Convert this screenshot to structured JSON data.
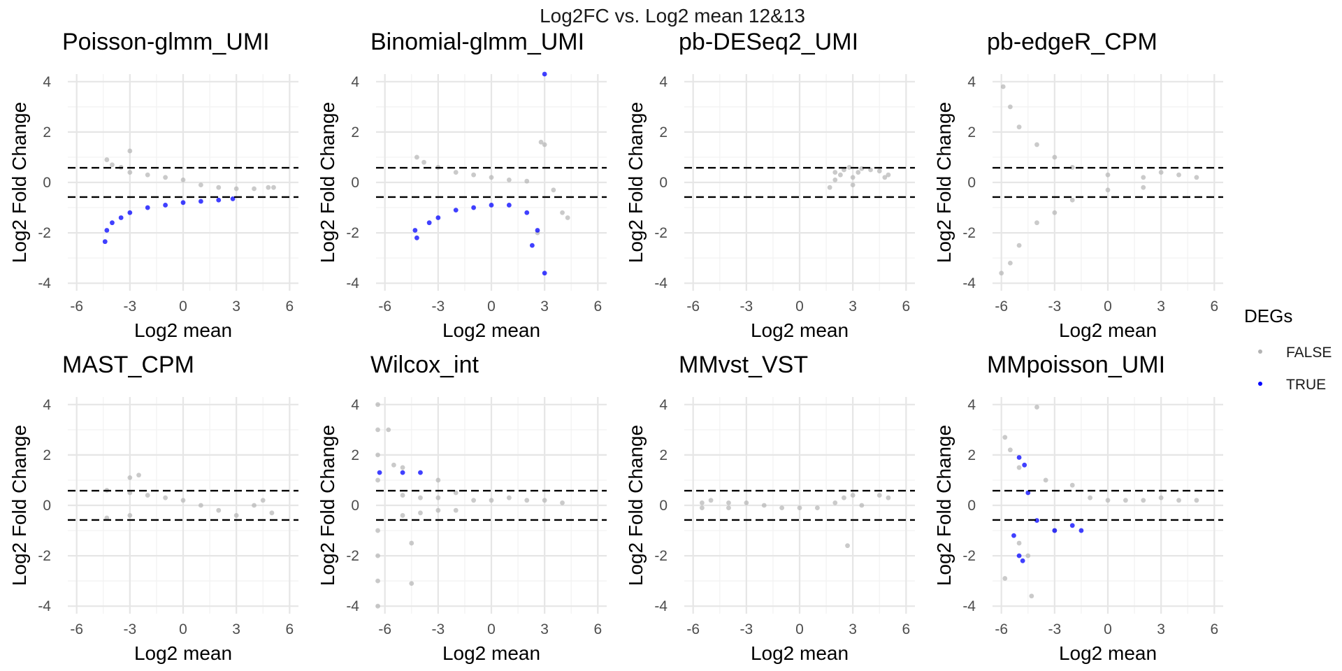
{
  "title": "Log2FC vs. Log2 mean  12&13",
  "legend": {
    "title": "DEGs",
    "items": [
      {
        "label": "FALSE",
        "color": "#b3b3b3"
      },
      {
        "label": "TRUE",
        "color": "#0000ff"
      }
    ]
  },
  "chart_data": [
    {
      "type": "scatter",
      "title": "Poisson-glmm_UMI",
      "xlabel": "Log2 mean",
      "ylabel": "Log2 Fold Change",
      "xlim": [
        -6.5,
        6.5
      ],
      "ylim": [
        -4.3,
        4.3
      ],
      "x_ticks": [
        -6,
        -3,
        0,
        3,
        6
      ],
      "y_ticks": [
        -4,
        -2,
        0,
        2,
        4
      ],
      "hlines": [
        0.58,
        -0.58
      ],
      "grid": true,
      "series": [
        {
          "name": "FALSE",
          "color": "#b3b3b3",
          "points": [
            [
              -4.3,
              0.9
            ],
            [
              -4.0,
              0.7
            ],
            [
              -3.5,
              0.6
            ],
            [
              -3.0,
              1.25
            ],
            [
              -3.0,
              0.4
            ],
            [
              -2.0,
              0.3
            ],
            [
              -1.0,
              0.2
            ],
            [
              0.0,
              0.1
            ],
            [
              1.0,
              -0.1
            ],
            [
              2.0,
              -0.2
            ],
            [
              3.0,
              -0.25
            ],
            [
              4.0,
              -0.25
            ],
            [
              4.8,
              -0.2
            ],
            [
              5.1,
              -0.2
            ]
          ]
        },
        {
          "name": "TRUE",
          "color": "#0000ff",
          "points": [
            [
              -4.3,
              -1.9
            ],
            [
              -4.4,
              -2.35
            ],
            [
              -4.0,
              -1.6
            ],
            [
              -3.5,
              -1.4
            ],
            [
              -3.0,
              -1.2
            ],
            [
              -2.0,
              -1.0
            ],
            [
              -1.0,
              -0.9
            ],
            [
              0.0,
              -0.8
            ],
            [
              1.0,
              -0.75
            ],
            [
              2.0,
              -0.7
            ],
            [
              2.8,
              -0.65
            ]
          ]
        }
      ]
    },
    {
      "type": "scatter",
      "title": "Binomial-glmm_UMI",
      "xlabel": "Log2 mean",
      "ylabel": "Log2 Fold Change",
      "xlim": [
        -6.5,
        6.5
      ],
      "ylim": [
        -4.3,
        4.3
      ],
      "x_ticks": [
        -6,
        -3,
        0,
        3,
        6
      ],
      "y_ticks": [
        -4,
        -2,
        0,
        2,
        4
      ],
      "hlines": [
        0.58,
        -0.58
      ],
      "grid": true,
      "series": [
        {
          "name": "FALSE",
          "color": "#b3b3b3",
          "points": [
            [
              -4.2,
              1.0
            ],
            [
              -3.8,
              0.8
            ],
            [
              -3.0,
              0.6
            ],
            [
              -2.0,
              0.4
            ],
            [
              -1.0,
              0.3
            ],
            [
              0.0,
              0.2
            ],
            [
              1.0,
              0.1
            ],
            [
              2.0,
              0.05
            ],
            [
              2.8,
              1.6
            ],
            [
              3.0,
              1.5
            ],
            [
              3.5,
              -0.3
            ],
            [
              4.0,
              -1.2
            ],
            [
              4.3,
              -1.4
            ],
            [
              2.6,
              -2.0
            ]
          ]
        },
        {
          "name": "TRUE",
          "color": "#0000ff",
          "points": [
            [
              -4.3,
              -1.9
            ],
            [
              -4.2,
              -2.2
            ],
            [
              -3.5,
              -1.6
            ],
            [
              -3.0,
              -1.4
            ],
            [
              -2.0,
              -1.1
            ],
            [
              -1.0,
              -1.0
            ],
            [
              0.0,
              -0.9
            ],
            [
              1.0,
              -0.9
            ],
            [
              2.0,
              -1.2
            ],
            [
              2.3,
              -2.5
            ],
            [
              2.6,
              -1.9
            ],
            [
              3.0,
              -3.6
            ],
            [
              3.0,
              4.3
            ]
          ]
        }
      ]
    },
    {
      "type": "scatter",
      "title": "pb-DESeq2_UMI",
      "xlabel": "Log2 mean",
      "ylabel": "Log2 Fold Change",
      "xlim": [
        -6.5,
        6.5
      ],
      "ylim": [
        -4.3,
        4.3
      ],
      "x_ticks": [
        -6,
        -3,
        0,
        3,
        6
      ],
      "y_ticks": [
        -4,
        -2,
        0,
        2,
        4
      ],
      "hlines": [
        0.58,
        -0.58
      ],
      "grid": true,
      "series": [
        {
          "name": "FALSE",
          "color": "#b3b3b3",
          "points": [
            [
              1.7,
              -0.2
            ],
            [
              2.0,
              0.1
            ],
            [
              2.0,
              0.4
            ],
            [
              2.3,
              0.3
            ],
            [
              2.5,
              0.5
            ],
            [
              2.8,
              0.6
            ],
            [
              3.0,
              0.2
            ],
            [
              3.0,
              -0.1
            ],
            [
              3.3,
              0.4
            ],
            [
              3.5,
              0.55
            ],
            [
              4.0,
              0.5
            ],
            [
              4.5,
              0.45
            ],
            [
              4.8,
              0.2
            ],
            [
              5.0,
              0.3
            ]
          ]
        }
      ]
    },
    {
      "type": "scatter",
      "title": "pb-edgeR_CPM",
      "xlabel": "Log2 mean",
      "ylabel": "Log2 Fold Change",
      "xlim": [
        -6.5,
        6.5
      ],
      "ylim": [
        -4.3,
        4.3
      ],
      "x_ticks": [
        -6,
        -3,
        0,
        3,
        6
      ],
      "y_ticks": [
        -4,
        -2,
        0,
        2,
        4
      ],
      "hlines": [
        0.58,
        -0.58
      ],
      "grid": true,
      "series": [
        {
          "name": "FALSE",
          "color": "#b3b3b3",
          "points": [
            [
              -5.9,
              3.8
            ],
            [
              -6.0,
              -3.6
            ],
            [
              -5.5,
              3.0
            ],
            [
              -5.5,
              -3.2
            ],
            [
              -5.0,
              2.2
            ],
            [
              -5.0,
              -2.5
            ],
            [
              -4.0,
              1.5
            ],
            [
              -4.0,
              -1.6
            ],
            [
              -3.0,
              1.0
            ],
            [
              -3.0,
              -1.2
            ],
            [
              -2.0,
              0.6
            ],
            [
              -2.0,
              -0.7
            ],
            [
              0.0,
              0.3
            ],
            [
              0.0,
              -0.3
            ],
            [
              2.0,
              0.2
            ],
            [
              2.0,
              -0.2
            ],
            [
              3.0,
              0.4
            ],
            [
              4.0,
              0.3
            ],
            [
              5.0,
              0.2
            ]
          ]
        }
      ]
    },
    {
      "type": "scatter",
      "title": "MAST_CPM",
      "xlabel": "Log2 mean",
      "ylabel": "Log2 Fold Change",
      "xlim": [
        -6.5,
        6.5
      ],
      "ylim": [
        -4.3,
        4.3
      ],
      "x_ticks": [
        -6,
        -3,
        0,
        3,
        6
      ],
      "y_ticks": [
        -4,
        -2,
        0,
        2,
        4
      ],
      "hlines": [
        0.58,
        -0.58
      ],
      "grid": true,
      "series": [
        {
          "name": "FALSE",
          "color": "#b3b3b3",
          "points": [
            [
              -4.3,
              0.6
            ],
            [
              -4.3,
              -0.5
            ],
            [
              -3.0,
              1.1
            ],
            [
              -2.5,
              1.2
            ],
            [
              -3.0,
              0.5
            ],
            [
              -3.0,
              -0.4
            ],
            [
              -2.0,
              0.4
            ],
            [
              -1.0,
              0.3
            ],
            [
              0.0,
              0.2
            ],
            [
              1.0,
              0.0
            ],
            [
              2.0,
              -0.2
            ],
            [
              3.0,
              -0.4
            ],
            [
              4.0,
              0.0
            ],
            [
              4.5,
              0.2
            ],
            [
              5.0,
              -0.3
            ]
          ]
        }
      ]
    },
    {
      "type": "scatter",
      "title": "Wilcox_int",
      "xlabel": "Log2 mean",
      "ylabel": "Log2 Fold Change",
      "xlim": [
        -6.5,
        6.5
      ],
      "ylim": [
        -4.3,
        4.3
      ],
      "x_ticks": [
        -6,
        -3,
        0,
        3,
        6
      ],
      "y_ticks": [
        -4,
        -2,
        0,
        2,
        4
      ],
      "hlines": [
        0.58,
        -0.58
      ],
      "grid": true,
      "series": [
        {
          "name": "FALSE",
          "color": "#b3b3b3",
          "points": [
            [
              -6.4,
              4.0
            ],
            [
              -6.4,
              3.0
            ],
            [
              -6.4,
              2.0
            ],
            [
              -6.4,
              1.0
            ],
            [
              -6.4,
              -1.0
            ],
            [
              -6.4,
              -2.0
            ],
            [
              -6.4,
              -3.0
            ],
            [
              -6.4,
              -4.0
            ],
            [
              -5.8,
              3.0
            ],
            [
              -5.5,
              1.6
            ],
            [
              -5.0,
              1.5
            ],
            [
              -5.0,
              0.4
            ],
            [
              -5.0,
              -0.4
            ],
            [
              -4.5,
              -1.5
            ],
            [
              -4.5,
              -3.1
            ],
            [
              -4.0,
              0.3
            ],
            [
              -4.0,
              -0.3
            ],
            [
              -3.0,
              1.0
            ],
            [
              -3.0,
              0.3
            ],
            [
              -3.0,
              -0.2
            ],
            [
              -2.0,
              0.5
            ],
            [
              -2.0,
              -0.2
            ],
            [
              -1.0,
              0.2
            ],
            [
              0.0,
              0.2
            ],
            [
              1.0,
              0.3
            ],
            [
              2.0,
              0.2
            ],
            [
              3.0,
              0.2
            ],
            [
              4.0,
              0.1
            ]
          ]
        },
        {
          "name": "TRUE",
          "color": "#0000ff",
          "points": [
            [
              -6.3,
              1.3
            ],
            [
              -5.0,
              1.3
            ],
            [
              -4.0,
              1.3
            ]
          ]
        }
      ]
    },
    {
      "type": "scatter",
      "title": "MMvst_VST",
      "xlabel": "Log2 mean",
      "ylabel": "Log2 Fold Change",
      "xlim": [
        -6.5,
        6.5
      ],
      "ylim": [
        -4.3,
        4.3
      ],
      "x_ticks": [
        -6,
        -3,
        0,
        3,
        6
      ],
      "y_ticks": [
        -4,
        -2,
        0,
        2,
        4
      ],
      "hlines": [
        0.58,
        -0.58
      ],
      "grid": true,
      "series": [
        {
          "name": "FALSE",
          "color": "#b3b3b3",
          "points": [
            [
              -5.5,
              0.1
            ],
            [
              -5.5,
              -0.1
            ],
            [
              -5.0,
              0.2
            ],
            [
              -4.0,
              0.1
            ],
            [
              -4.0,
              -0.1
            ],
            [
              -3.0,
              0.1
            ],
            [
              -2.0,
              0.0
            ],
            [
              -1.0,
              -0.1
            ],
            [
              0.0,
              -0.1
            ],
            [
              1.0,
              -0.1
            ],
            [
              2.0,
              0.1
            ],
            [
              2.5,
              0.3
            ],
            [
              3.0,
              0.4
            ],
            [
              3.5,
              0.0
            ],
            [
              4.5,
              0.4
            ],
            [
              5.0,
              0.3
            ],
            [
              2.7,
              -1.6
            ]
          ]
        }
      ]
    },
    {
      "type": "scatter",
      "title": "MMpoisson_UMI",
      "xlabel": "Log2 mean",
      "ylabel": "Log2 Fold Change",
      "xlim": [
        -6.5,
        6.5
      ],
      "ylim": [
        -4.3,
        4.3
      ],
      "x_ticks": [
        -6,
        -3,
        0,
        3,
        6
      ],
      "y_ticks": [
        -4,
        -2,
        0,
        2,
        4
      ],
      "hlines": [
        0.58,
        -0.58
      ],
      "grid": true,
      "series": [
        {
          "name": "FALSE",
          "color": "#b3b3b3",
          "points": [
            [
              -5.8,
              2.7
            ],
            [
              -5.5,
              2.2
            ],
            [
              -5.0,
              1.5
            ],
            [
              -5.0,
              -1.5
            ],
            [
              -4.5,
              -2.0
            ],
            [
              -5.8,
              -2.9
            ],
            [
              -4.0,
              3.9
            ],
            [
              -4.3,
              -3.6
            ],
            [
              -3.5,
              1.0
            ],
            [
              -3.0,
              -1.0
            ],
            [
              -2.0,
              0.8
            ],
            [
              -1.0,
              0.3
            ],
            [
              0.0,
              0.2
            ],
            [
              1.0,
              0.2
            ],
            [
              2.0,
              0.2
            ],
            [
              3.0,
              0.3
            ],
            [
              4.0,
              0.2
            ],
            [
              5.0,
              0.2
            ]
          ]
        },
        {
          "name": "TRUE",
          "color": "#0000ff",
          "points": [
            [
              -5.0,
              1.9
            ],
            [
              -4.7,
              1.6
            ],
            [
              -5.3,
              -1.2
            ],
            [
              -5.0,
              -2.0
            ],
            [
              -4.8,
              -2.2
            ],
            [
              -4.5,
              0.5
            ],
            [
              -4.0,
              -0.6
            ],
            [
              -3.0,
              -1.0
            ],
            [
              -2.0,
              -0.8
            ],
            [
              -1.5,
              -1.0
            ]
          ]
        }
      ]
    }
  ]
}
